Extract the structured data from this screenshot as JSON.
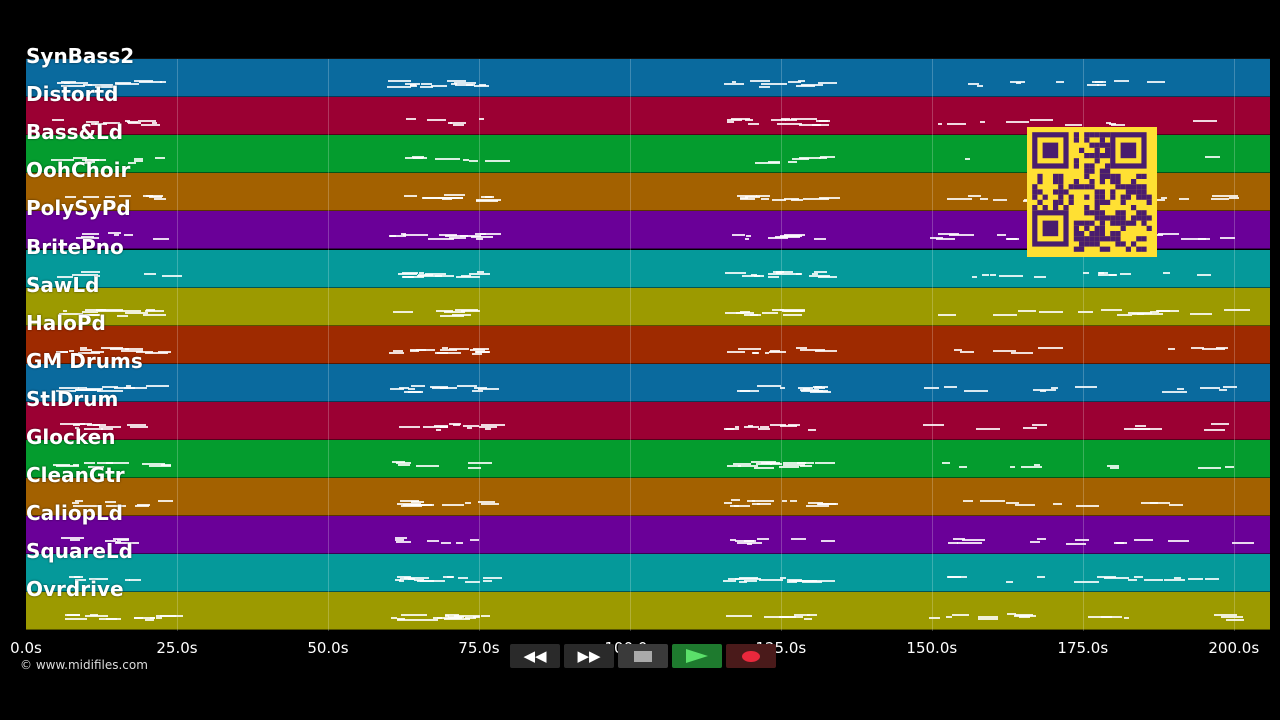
{
  "tracks": [
    {
      "label": "SynBass2",
      "color": "#0a6a9e"
    },
    {
      "label": "Distortd",
      "color": "#9b0033"
    },
    {
      "label": "Bass&Ld",
      "color": "#049c2e"
    },
    {
      "label": "OohChoir",
      "color": "#a36100"
    },
    {
      "label": "PolySyPd",
      "color": "#6a0098"
    },
    {
      "label": "BritePno",
      "color": "#05999a"
    },
    {
      "label": "SawLd",
      "color": "#9c9a00"
    },
    {
      "label": "HaloPd",
      "color": "#9e2a00"
    },
    {
      "label": "GM Drums",
      "color": "#0a6a9e"
    },
    {
      "label": "StlDrum",
      "color": "#9b0033"
    },
    {
      "label": "Glocken",
      "color": "#049c2e"
    },
    {
      "label": "CleanGtr",
      "color": "#a36100"
    },
    {
      "label": "CaliopLd",
      "color": "#6a0098"
    },
    {
      "label": "SquareLd",
      "color": "#05999a"
    },
    {
      "label": "Ovrdrive",
      "color": "#9c9a00"
    }
  ],
  "timeline": {
    "ticks": [
      "0.0s",
      "25.0s",
      "50.0s",
      "75.0s",
      "100.0s",
      "125.0s",
      "150.0s",
      "175.0s",
      "200.0s"
    ],
    "max_seconds": 206
  },
  "credit": "© www.midifiles.com",
  "transport": {
    "rewind_icon": "rewind-icon",
    "forward_icon": "fast-forward-icon",
    "stop_icon": "stop-icon",
    "play_icon": "play-icon",
    "record_icon": "record-icon"
  },
  "qr_code": "qr-code"
}
